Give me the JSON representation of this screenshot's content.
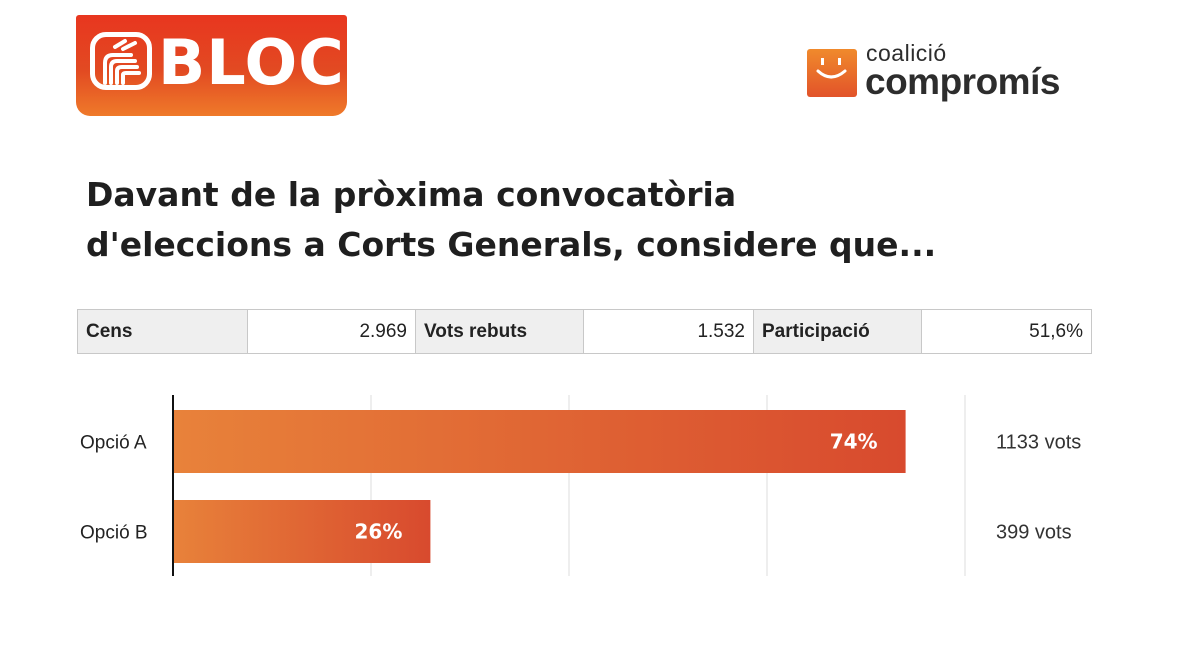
{
  "logos": {
    "bloc": {
      "text": "BLOC"
    },
    "compromis": {
      "top_text": "coalició",
      "bottom_text": "compromís"
    }
  },
  "title_lines": [
    "Davant de la pròxima convocatòria",
    "d'eleccions a Corts Generals, considere que..."
  ],
  "stats": {
    "cens_label": "Cens",
    "cens_value": "2.969",
    "vots_label": "Vots rebuts",
    "vots_value": "1.532",
    "participacio_label": "Participació",
    "participacio_value": "51,6%"
  },
  "colors": {
    "brand_orange": "#e8361f",
    "bar_start": "#e8823a",
    "bar_end": "#d84a2e",
    "grid": "#dcdcdc",
    "axis": "#111111"
  },
  "chart_data": {
    "type": "bar",
    "orientation": "horizontal",
    "categories": [
      "Opció A",
      "Opció B"
    ],
    "values": [
      74,
      26
    ],
    "value_labels": [
      "74%",
      "26%"
    ],
    "vote_labels": [
      "1133 vots",
      "399 vots"
    ],
    "xlim": [
      0,
      100
    ],
    "grid": true,
    "title": "",
    "xlabel": "",
    "ylabel": ""
  }
}
